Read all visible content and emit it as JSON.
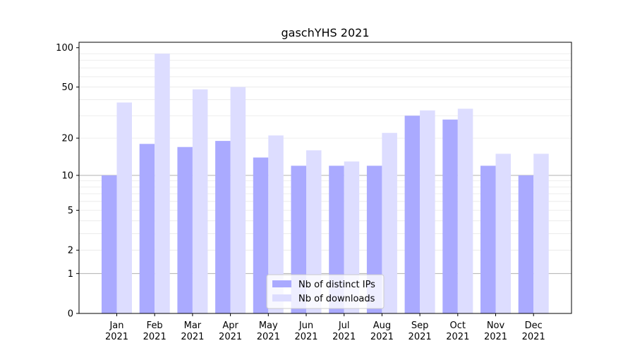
{
  "chart_data": {
    "type": "bar",
    "title": "gaschYHS 2021",
    "xlabel": "",
    "ylabel": "",
    "yscale": "symlog",
    "categories": [
      "Jan\n2021",
      "Feb\n2021",
      "Mar\n2021",
      "Apr\n2021",
      "May\n2021",
      "Jun\n2021",
      "Jul\n2021",
      "Aug\n2021",
      "Sep\n2021",
      "Oct\n2021",
      "Nov\n2021",
      "Dec\n2021"
    ],
    "y_ticks": [
      0,
      1,
      2,
      5,
      10,
      20,
      50,
      100
    ],
    "y_tick_labels": [
      "0",
      "1",
      "2",
      "5",
      "10",
      "20",
      "50",
      "100"
    ],
    "ylim": [
      0,
      110
    ],
    "grid": "horizontal",
    "legend_position": "bottom-center",
    "series": [
      {
        "name": "Nb of distinct IPs",
        "color": "#aaaaff",
        "values": [
          10,
          18,
          17,
          19,
          14,
          12,
          12,
          12,
          30,
          28,
          12,
          10
        ]
      },
      {
        "name": "Nb of downloads",
        "color": "#ddddff",
        "values": [
          38,
          90,
          48,
          50,
          21,
          16,
          13,
          22,
          33,
          34,
          15,
          15
        ]
      }
    ]
  }
}
